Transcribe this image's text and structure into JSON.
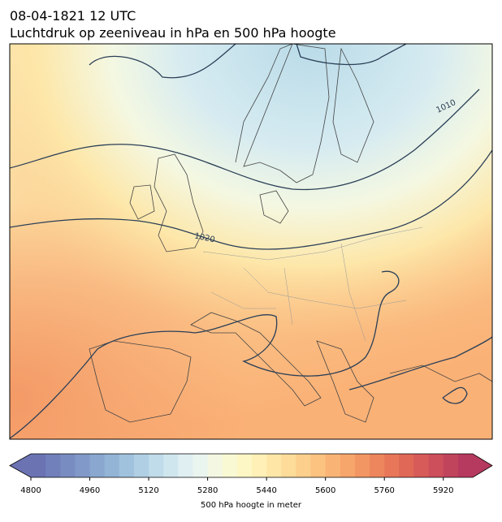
{
  "title": "08-04-1821 12 UTC",
  "subtitle": "Luchtdruk op zeeniveau in hPa en 500 hPa hoogte",
  "contour_labels": [
    "1010",
    "1020"
  ],
  "colorbar": {
    "label": "500 hPa hoogte in meter",
    "lim": [
      4800,
      6000
    ],
    "ticks": [
      4800,
      4960,
      5120,
      5280,
      5440,
      5600,
      5760,
      5920
    ],
    "colors": [
      "#6b73b3",
      "#717fba",
      "#788cc1",
      "#8099c8",
      "#89a7cf",
      "#94b4d6",
      "#a1c2dd",
      "#b0cfe4",
      "#c0dbea",
      "#d0e6ef",
      "#dfeff2",
      "#ebf5ef",
      "#f4f8e2",
      "#f9f9d4",
      "#fdf7c6",
      "#fef0b6",
      "#fee6a7",
      "#fddb99",
      "#fccf8c",
      "#fbc280",
      "#f9b475",
      "#f6a56b",
      "#f29663",
      "#ed865c",
      "#e77758",
      "#df6857",
      "#d65b59",
      "#cc4f5b",
      "#c1445d",
      "#b63a5f"
    ]
  }
}
